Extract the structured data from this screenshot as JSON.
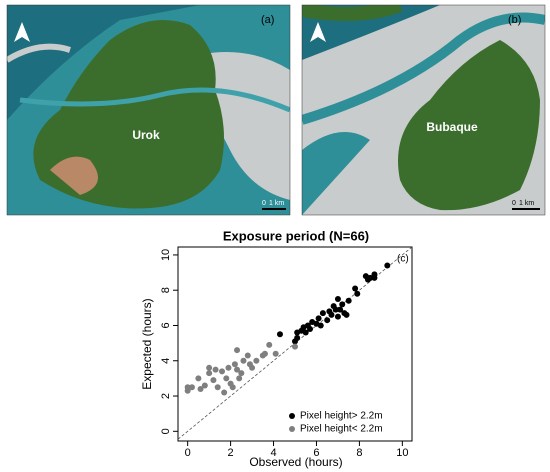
{
  "panels": [
    {
      "label": "(a)",
      "place": "Urok",
      "scale_labels": [
        "0",
        "1 km"
      ]
    },
    {
      "label": "(b)",
      "place": "Bubaque",
      "scale_labels": [
        "0",
        "1 km"
      ]
    }
  ],
  "chart_data": {
    "type": "scatter",
    "title": "Exposure period (N=66)",
    "panel_label": "(c)",
    "xlabel": "Observed (hours)",
    "ylabel": "Expected (hours)",
    "xlim": [
      -0.45,
      10.45
    ],
    "ylim": [
      -0.55,
      10.45
    ],
    "xticks": [
      0,
      2,
      4,
      6,
      8,
      10
    ],
    "yticks": [
      0,
      2,
      4,
      6,
      8,
      10
    ],
    "legend": "bottom right",
    "series": [
      {
        "name": "Pixel height> 2.2m",
        "color": "#000000",
        "x": [
          4.3,
          5.0,
          5.1,
          5.1,
          5.3,
          5.4,
          5.5,
          5.6,
          5.7,
          5.8,
          6.0,
          6.1,
          6.2,
          6.3,
          6.5,
          6.6,
          6.7,
          6.8,
          6.9,
          7.0,
          7.0,
          7.1,
          7.2,
          7.3,
          7.4,
          7.5,
          7.8,
          7.9,
          8.3,
          8.4,
          8.5,
          8.7,
          8.7,
          9.3
        ],
        "values": [
          5.5,
          5.1,
          5.3,
          5.6,
          5.7,
          5.9,
          5.6,
          6.0,
          5.8,
          6.2,
          6.1,
          6.4,
          6.0,
          6.7,
          6.3,
          6.8,
          6.6,
          7.1,
          6.9,
          7.5,
          6.5,
          6.9,
          7.2,
          6.7,
          6.6,
          7.4,
          8.1,
          7.8,
          8.8,
          8.6,
          8.7,
          8.9,
          8.7,
          9.4
        ]
      },
      {
        "name": "Pixel height< 2.2m",
        "color": "#7f7f7f",
        "x": [
          0,
          0,
          0.2,
          0.5,
          0.6,
          0.8,
          1.0,
          1.0,
          1.2,
          1.3,
          1.4,
          1.6,
          1.7,
          1.8,
          1.9,
          2.0,
          2.1,
          2.2,
          2.3,
          2.3,
          2.4,
          2.5,
          2.6,
          2.8,
          2.9,
          3.0,
          3.2,
          3.5,
          3.6,
          3.8,
          4.1,
          5.0
        ],
        "values": [
          2.3,
          2.5,
          2.5,
          3.0,
          2.4,
          2.6,
          3.6,
          3.3,
          2.9,
          3.5,
          2.5,
          3.4,
          2.2,
          3.0,
          3.6,
          2.7,
          2.5,
          3.8,
          3.5,
          4.6,
          3.0,
          3.3,
          4.0,
          4.3,
          3.8,
          3.6,
          4.0,
          4.3,
          4.4,
          4.9,
          4.4,
          4.8
        ]
      }
    ]
  }
}
